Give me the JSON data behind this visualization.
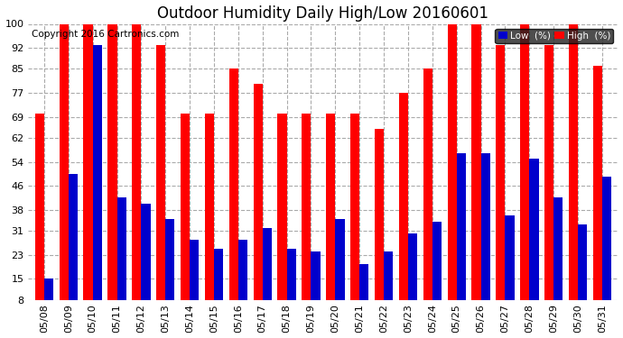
{
  "title": "Outdoor Humidity Daily High/Low 20160601",
  "copyright": "Copyright 2016 Cartronics.com",
  "dates": [
    "05/08",
    "05/09",
    "05/10",
    "05/11",
    "05/12",
    "05/13",
    "05/14",
    "05/15",
    "05/16",
    "05/17",
    "05/18",
    "05/19",
    "05/20",
    "05/21",
    "05/22",
    "05/23",
    "05/24",
    "05/25",
    "05/26",
    "05/27",
    "05/28",
    "05/29",
    "05/30",
    "05/31"
  ],
  "high": [
    70,
    100,
    100,
    100,
    100,
    93,
    70,
    70,
    85,
    80,
    70,
    70,
    70,
    70,
    65,
    77,
    85,
    100,
    100,
    93,
    100,
    93,
    100,
    86
  ],
  "low": [
    15,
    50,
    93,
    42,
    40,
    35,
    28,
    25,
    28,
    32,
    25,
    24,
    35,
    20,
    24,
    30,
    34,
    57,
    57,
    36,
    55,
    42,
    33,
    49
  ],
  "ylim": [
    8,
    100
  ],
  "yticks": [
    8,
    15,
    23,
    31,
    38,
    46,
    54,
    62,
    69,
    77,
    85,
    92,
    100
  ],
  "bar_width": 0.38,
  "high_color": "#ff0000",
  "low_color": "#0000cc",
  "bg_color": "#ffffff",
  "grid_color": "#aaaaaa",
  "legend_bg": "#222222",
  "title_fontsize": 12,
  "tick_fontsize": 8,
  "copyright_fontsize": 7.5
}
